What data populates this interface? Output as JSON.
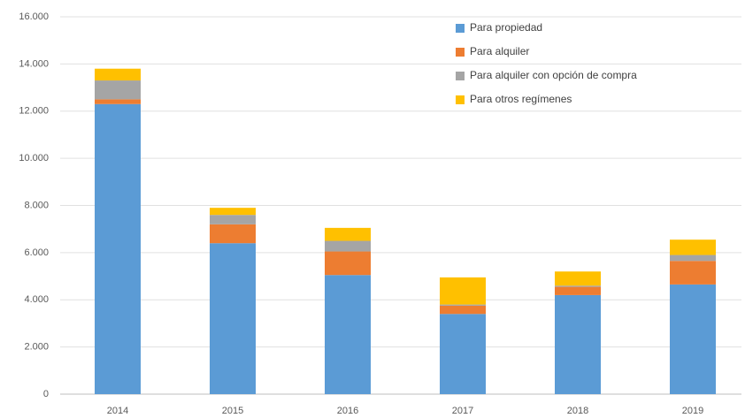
{
  "chart_data": {
    "type": "stacked_bar",
    "categories": [
      "2014",
      "2015",
      "2016",
      "2017",
      "2018",
      "2019"
    ],
    "series": [
      {
        "name": "Para propiedad",
        "color": "#5b9bd5",
        "values": [
          12300,
          6400,
          5050,
          3400,
          4200,
          4650
        ]
      },
      {
        "name": "Para alquiler",
        "color": "#ed7d31",
        "values": [
          200,
          800,
          1000,
          350,
          350,
          1000
        ]
      },
      {
        "name": "Para alquiler con opción de compra",
        "color": "#a5a5a5",
        "values": [
          800,
          400,
          450,
          50,
          50,
          250
        ]
      },
      {
        "name": "Para otros regímenes",
        "color": "#ffc000",
        "values": [
          500,
          300,
          550,
          1150,
          600,
          650
        ]
      }
    ],
    "ylim": [
      0,
      16000
    ],
    "yticks": [
      0,
      {
        "value": 2000,
        "label": "2.000"
      },
      {
        "value": 4000,
        "label": "4.000"
      },
      {
        "value": 6000,
        "label": "6.000"
      },
      {
        "value": 8000,
        "label": "8.000"
      },
      {
        "value": 10000,
        "label": "10.000"
      },
      {
        "value": 12000,
        "label": "12.000"
      },
      {
        "value": 14000,
        "label": "14.000"
      },
      {
        "value": 16000,
        "label": "16.000"
      }
    ],
    "grid": true,
    "legend": "top-right"
  }
}
